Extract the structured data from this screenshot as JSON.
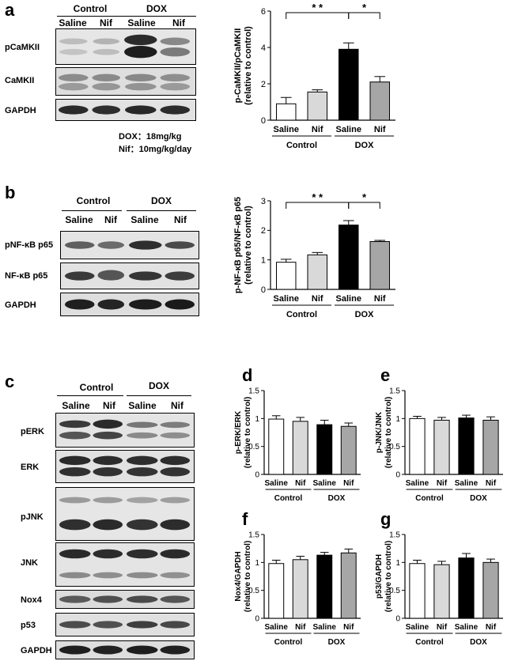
{
  "panels": {
    "a": "a",
    "b": "b",
    "c": "c",
    "d": "d",
    "e": "e",
    "f": "f",
    "g": "g"
  },
  "blots": {
    "group_control": "Control",
    "group_dox": "DOX",
    "lane_saline": "Saline",
    "lane_nif": "Nif",
    "a_rows": [
      "pCaMKII",
      "CaMKII",
      "GAPDH"
    ],
    "b_rows": [
      "pNF-κB p65",
      "NF-κB p65",
      "GAPDH"
    ],
    "c_rows": [
      "pERK",
      "ERK",
      "pJNK",
      "JNK",
      "Nox4",
      "p53",
      "GAPDH"
    ],
    "dose_note": "DOX：18mg/kg\nNif：10mg/kg/day"
  },
  "colors": {
    "saline_control": "#ffffff",
    "nif_control": "#d9d9d9",
    "saline_dox": "#000000",
    "nif_dox": "#a6a6a6"
  },
  "chart_data": [
    {
      "id": "a",
      "type": "bar",
      "ylabel": "p-CaMKII/pCaMKII",
      "ylabel2": "(relative to control)",
      "ylim": [
        0,
        6
      ],
      "yticks": [
        "0",
        "2",
        "4",
        "6"
      ],
      "ytick_values": [
        0,
        2,
        4,
        6
      ],
      "categories": [
        "Saline",
        "Nif",
        "Saline",
        "Nif"
      ],
      "groups": [
        "Control",
        "DOX"
      ],
      "values": [
        0.9,
        1.55,
        3.9,
        2.1
      ],
      "errors": [
        0.35,
        0.12,
        0.35,
        0.3
      ],
      "significance": [
        {
          "from": 0,
          "to": 2,
          "label": "* *"
        },
        {
          "from": 2,
          "to": 3,
          "label": "*"
        }
      ]
    },
    {
      "id": "b",
      "type": "bar",
      "ylabel": "p-NF-κB p65/NF-κB p65",
      "ylabel2": "(relative to control)",
      "ylim": [
        0,
        3
      ],
      "yticks": [
        "0",
        "1",
        "2",
        "3"
      ],
      "ytick_values": [
        0,
        1,
        2,
        3
      ],
      "categories": [
        "Saline",
        "Nif",
        "Saline",
        "Nif"
      ],
      "groups": [
        "Control",
        "DOX"
      ],
      "values": [
        0.92,
        1.17,
        2.18,
        1.62
      ],
      "errors": [
        0.1,
        0.08,
        0.15,
        0.04
      ],
      "significance": [
        {
          "from": 0,
          "to": 2,
          "label": "* *"
        },
        {
          "from": 2,
          "to": 3,
          "label": "*"
        }
      ]
    },
    {
      "id": "d",
      "type": "bar",
      "ylabel": "p-ERK/ERK",
      "ylabel2": "(relative to control)",
      "ylim": [
        0,
        1.5
      ],
      "yticks": [
        "0",
        "0.5",
        "1",
        "1.5"
      ],
      "ytick_values": [
        0,
        0.5,
        1,
        1.5
      ],
      "categories": [
        "Saline",
        "Nif",
        "Saline",
        "Nif"
      ],
      "groups": [
        "Control",
        "DOX"
      ],
      "values": [
        0.99,
        0.95,
        0.89,
        0.86
      ],
      "errors": [
        0.06,
        0.07,
        0.08,
        0.06
      ],
      "significance": []
    },
    {
      "id": "e",
      "type": "bar",
      "ylabel": "p-JNK/JNK",
      "ylabel2": "(relative to control)",
      "ylim": [
        0,
        1.5
      ],
      "yticks": [
        "0",
        "0.5",
        "1",
        "1.5"
      ],
      "ytick_values": [
        0,
        0.5,
        1,
        1.5
      ],
      "categories": [
        "Saline",
        "Nif",
        "Saline",
        "Nif"
      ],
      "groups": [
        "Control",
        "DOX"
      ],
      "values": [
        1.0,
        0.97,
        1.01,
        0.97
      ],
      "errors": [
        0.04,
        0.05,
        0.05,
        0.06
      ],
      "significance": []
    },
    {
      "id": "f",
      "type": "bar",
      "ylabel": "Nox4/GAPDH",
      "ylabel2": "(relative to control)",
      "ylim": [
        0,
        1.5
      ],
      "yticks": [
        "0",
        "0.5",
        "1",
        "1.5"
      ],
      "ytick_values": [
        0,
        0.5,
        1,
        1.5
      ],
      "categories": [
        "Saline",
        "Nif",
        "Saline",
        "Nif"
      ],
      "groups": [
        "Control",
        "DOX"
      ],
      "values": [
        0.98,
        1.05,
        1.13,
        1.17
      ],
      "errors": [
        0.06,
        0.06,
        0.05,
        0.07
      ],
      "significance": []
    },
    {
      "id": "g",
      "type": "bar",
      "ylabel": "p53/GAPDH",
      "ylabel2": "(relative to control)",
      "ylim": [
        0,
        1.5
      ],
      "yticks": [
        "0",
        "0.5",
        "1",
        "1.5"
      ],
      "ytick_values": [
        0,
        0.5,
        1,
        1.5
      ],
      "categories": [
        "Saline",
        "Nif",
        "Saline",
        "Nif"
      ],
      "groups": [
        "Control",
        "DOX"
      ],
      "values": [
        0.98,
        0.96,
        1.08,
        1.0
      ],
      "errors": [
        0.06,
        0.06,
        0.08,
        0.06
      ],
      "significance": []
    }
  ]
}
